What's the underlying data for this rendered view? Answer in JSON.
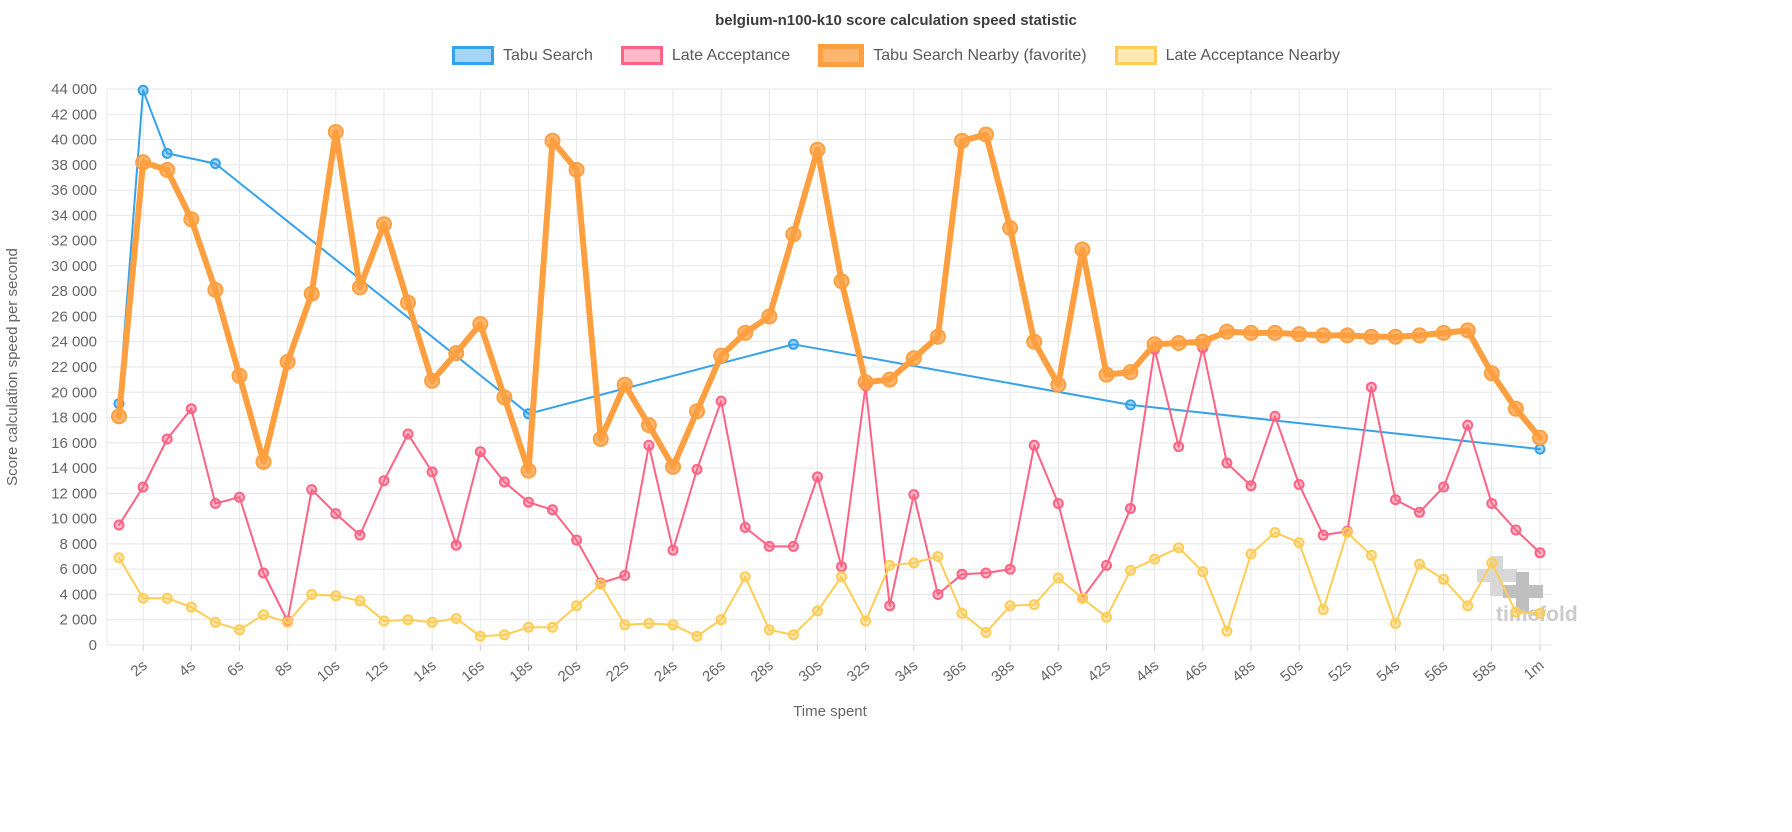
{
  "page": {
    "watermark": "timefold"
  },
  "chart_data": {
    "type": "line",
    "title": "belgium-n100-k10 score calculation speed statistic",
    "xlabel": "Time spent",
    "ylabel": "Score calculation speed per second",
    "x_unit": "seconds",
    "x_min": 0.5,
    "x_max": 60.5,
    "y_min": 0,
    "y_max": 44000,
    "y_step": 2000,
    "grid": true,
    "legend_position": "top",
    "y_tick_labels": [
      "0",
      "2 000",
      "4 000",
      "6 000",
      "8 000",
      "10 000",
      "12 000",
      "14 000",
      "16 000",
      "18 000",
      "20 000",
      "22 000",
      "24 000",
      "26 000",
      "28 000",
      "30 000",
      "32 000",
      "34 000",
      "36 000",
      "38 000",
      "40 000",
      "42 000",
      "44 000"
    ],
    "x_tick_values": [
      2,
      4,
      6,
      8,
      10,
      12,
      14,
      16,
      18,
      20,
      22,
      24,
      26,
      28,
      30,
      32,
      34,
      36,
      38,
      40,
      42,
      44,
      46,
      48,
      50,
      52,
      54,
      56,
      58,
      60
    ],
    "x_tick_labels": [
      "2s",
      "4s",
      "6s",
      "8s",
      "10s",
      "12s",
      "14s",
      "16s",
      "18s",
      "20s",
      "22s",
      "24s",
      "26s",
      "28s",
      "30s",
      "32s",
      "34s",
      "36s",
      "38s",
      "40s",
      "42s",
      "44s",
      "46s",
      "48s",
      "50s",
      "52s",
      "54s",
      "56s",
      "58s",
      "1m"
    ],
    "series": [
      {
        "id": "tabu-search",
        "name": "Tabu Search",
        "color": "#36A2EB",
        "fill": "rgba(54,162,235,0.45)",
        "line_width": 2,
        "marker_radius": 4.5,
        "marker_border": 2,
        "points": [
          [
            1,
            19100
          ],
          [
            2,
            43900
          ],
          [
            3,
            38900
          ],
          [
            5,
            38100
          ],
          [
            18,
            18300
          ],
          [
            29,
            23800
          ],
          [
            43,
            19000
          ],
          [
            60,
            15500
          ]
        ]
      },
      {
        "id": "late-acceptance",
        "name": "Late Acceptance",
        "color": "#FF6384",
        "fill": "rgba(255,99,132,0.45)",
        "line_width": 2,
        "marker_radius": 4.5,
        "marker_border": 2,
        "points": [
          [
            1,
            9500
          ],
          [
            2,
            12500
          ],
          [
            3,
            16300
          ],
          [
            4,
            18700
          ],
          [
            5,
            11200
          ],
          [
            6,
            11700
          ],
          [
            7,
            5700
          ],
          [
            8,
            1900
          ],
          [
            9,
            12300
          ],
          [
            10,
            10400
          ],
          [
            11,
            8700
          ],
          [
            12,
            13000
          ],
          [
            13,
            16700
          ],
          [
            14,
            13700
          ],
          [
            15,
            7900
          ],
          [
            16,
            15300
          ],
          [
            17,
            12900
          ],
          [
            18,
            11300
          ],
          [
            19,
            10700
          ],
          [
            20,
            8300
          ],
          [
            21,
            4900
          ],
          [
            22,
            5500
          ],
          [
            23,
            15800
          ],
          [
            24,
            7500
          ],
          [
            25,
            13900
          ],
          [
            26,
            19300
          ],
          [
            27,
            9300
          ],
          [
            28,
            7800
          ],
          [
            29,
            7800
          ],
          [
            30,
            13300
          ],
          [
            31,
            6200
          ],
          [
            32,
            20500
          ],
          [
            33,
            3100
          ],
          [
            34,
            11900
          ],
          [
            35,
            4000
          ],
          [
            36,
            5600
          ],
          [
            37,
            5700
          ],
          [
            38,
            6000
          ],
          [
            39,
            15800
          ],
          [
            40,
            11200
          ],
          [
            41,
            3700
          ],
          [
            42,
            6300
          ],
          [
            43,
            10800
          ],
          [
            44,
            23400
          ],
          [
            45,
            15700
          ],
          [
            46,
            23500
          ],
          [
            47,
            14400
          ],
          [
            48,
            12600
          ],
          [
            49,
            18100
          ],
          [
            50,
            12700
          ],
          [
            51,
            8700
          ],
          [
            52,
            9000
          ],
          [
            53,
            20400
          ],
          [
            54,
            11500
          ],
          [
            55,
            10500
          ],
          [
            56,
            12500
          ],
          [
            57,
            17400
          ],
          [
            58,
            11200
          ],
          [
            59,
            9100
          ],
          [
            60,
            7300
          ]
        ]
      },
      {
        "id": "tabu-search-nearby",
        "name": "Tabu Search Nearby (favorite)",
        "color": "#FF9F40",
        "fill": "rgba(255,159,64,0.75)",
        "line_width": 6,
        "marker_radius": 7,
        "marker_border": 2,
        "points": [
          [
            1,
            18100
          ],
          [
            2,
            38200
          ],
          [
            3,
            37600
          ],
          [
            4,
            33700
          ],
          [
            5,
            28100
          ],
          [
            6,
            21300
          ],
          [
            7,
            14500
          ],
          [
            8,
            22400
          ],
          [
            9,
            27800
          ],
          [
            10,
            40600
          ],
          [
            11,
            28300
          ],
          [
            12,
            33300
          ],
          [
            13,
            27100
          ],
          [
            14,
            20900
          ],
          [
            15,
            23100
          ],
          [
            16,
            25400
          ],
          [
            17,
            19600
          ],
          [
            18,
            13800
          ],
          [
            19,
            39900
          ],
          [
            20,
            37600
          ],
          [
            21,
            16300
          ],
          [
            22,
            20600
          ],
          [
            23,
            17400
          ],
          [
            24,
            14100
          ],
          [
            25,
            18500
          ],
          [
            26,
            22900
          ],
          [
            27,
            24700
          ],
          [
            28,
            26000
          ],
          [
            29,
            32500
          ],
          [
            30,
            39200
          ],
          [
            31,
            28800
          ],
          [
            32,
            20800
          ],
          [
            33,
            21000
          ],
          [
            34,
            22700
          ],
          [
            35,
            24400
          ],
          [
            36,
            39900
          ],
          [
            37,
            40400
          ],
          [
            38,
            33000
          ],
          [
            39,
            24000
          ],
          [
            40,
            20600
          ],
          [
            41,
            31300
          ],
          [
            42,
            21400
          ],
          [
            43,
            21600
          ],
          [
            44,
            23800
          ],
          [
            45,
            23900
          ],
          [
            46,
            24000
          ],
          [
            47,
            24800
          ],
          [
            48,
            24700
          ],
          [
            49,
            24700
          ],
          [
            50,
            24600
          ],
          [
            51,
            24500
          ],
          [
            52,
            24500
          ],
          [
            53,
            24400
          ],
          [
            54,
            24400
          ],
          [
            55,
            24500
          ],
          [
            56,
            24700
          ],
          [
            57,
            24900
          ],
          [
            58,
            21500
          ],
          [
            59,
            18700
          ],
          [
            60,
            16400
          ]
        ]
      },
      {
        "id": "late-acceptance-nearby",
        "name": "Late Acceptance Nearby",
        "color": "#FFCD56",
        "fill": "rgba(255,205,86,0.45)",
        "line_width": 2,
        "marker_radius": 4.5,
        "marker_border": 2,
        "points": [
          [
            1,
            6900
          ],
          [
            2,
            3700
          ],
          [
            3,
            3700
          ],
          [
            4,
            3000
          ],
          [
            5,
            1800
          ],
          [
            6,
            1200
          ],
          [
            7,
            2400
          ],
          [
            8,
            1800
          ],
          [
            9,
            4000
          ],
          [
            10,
            3900
          ],
          [
            11,
            3500
          ],
          [
            12,
            1900
          ],
          [
            13,
            2000
          ],
          [
            14,
            1800
          ],
          [
            15,
            2100
          ],
          [
            16,
            700
          ],
          [
            17,
            800
          ],
          [
            18,
            1400
          ],
          [
            19,
            1400
          ],
          [
            20,
            3100
          ],
          [
            21,
            4800
          ],
          [
            22,
            1600
          ],
          [
            23,
            1700
          ],
          [
            24,
            1600
          ],
          [
            25,
            700
          ],
          [
            26,
            2000
          ],
          [
            27,
            5400
          ],
          [
            28,
            1200
          ],
          [
            29,
            800
          ],
          [
            30,
            2700
          ],
          [
            31,
            5400
          ],
          [
            32,
            1900
          ],
          [
            33,
            6300
          ],
          [
            34,
            6500
          ],
          [
            35,
            7000
          ],
          [
            36,
            2500
          ],
          [
            37,
            1000
          ],
          [
            38,
            3100
          ],
          [
            39,
            3200
          ],
          [
            40,
            5300
          ],
          [
            41,
            3700
          ],
          [
            42,
            2200
          ],
          [
            43,
            5900
          ],
          [
            44,
            6800
          ],
          [
            45,
            7700
          ],
          [
            46,
            5800
          ],
          [
            47,
            1100
          ],
          [
            48,
            7200
          ],
          [
            49,
            8900
          ],
          [
            50,
            8100
          ],
          [
            51,
            2800
          ],
          [
            52,
            8900
          ],
          [
            53,
            7100
          ],
          [
            54,
            1700
          ],
          [
            55,
            6400
          ],
          [
            56,
            5200
          ],
          [
            57,
            3100
          ],
          [
            58,
            6500
          ],
          [
            59,
            2600
          ],
          [
            60,
            2500
          ]
        ]
      }
    ]
  }
}
